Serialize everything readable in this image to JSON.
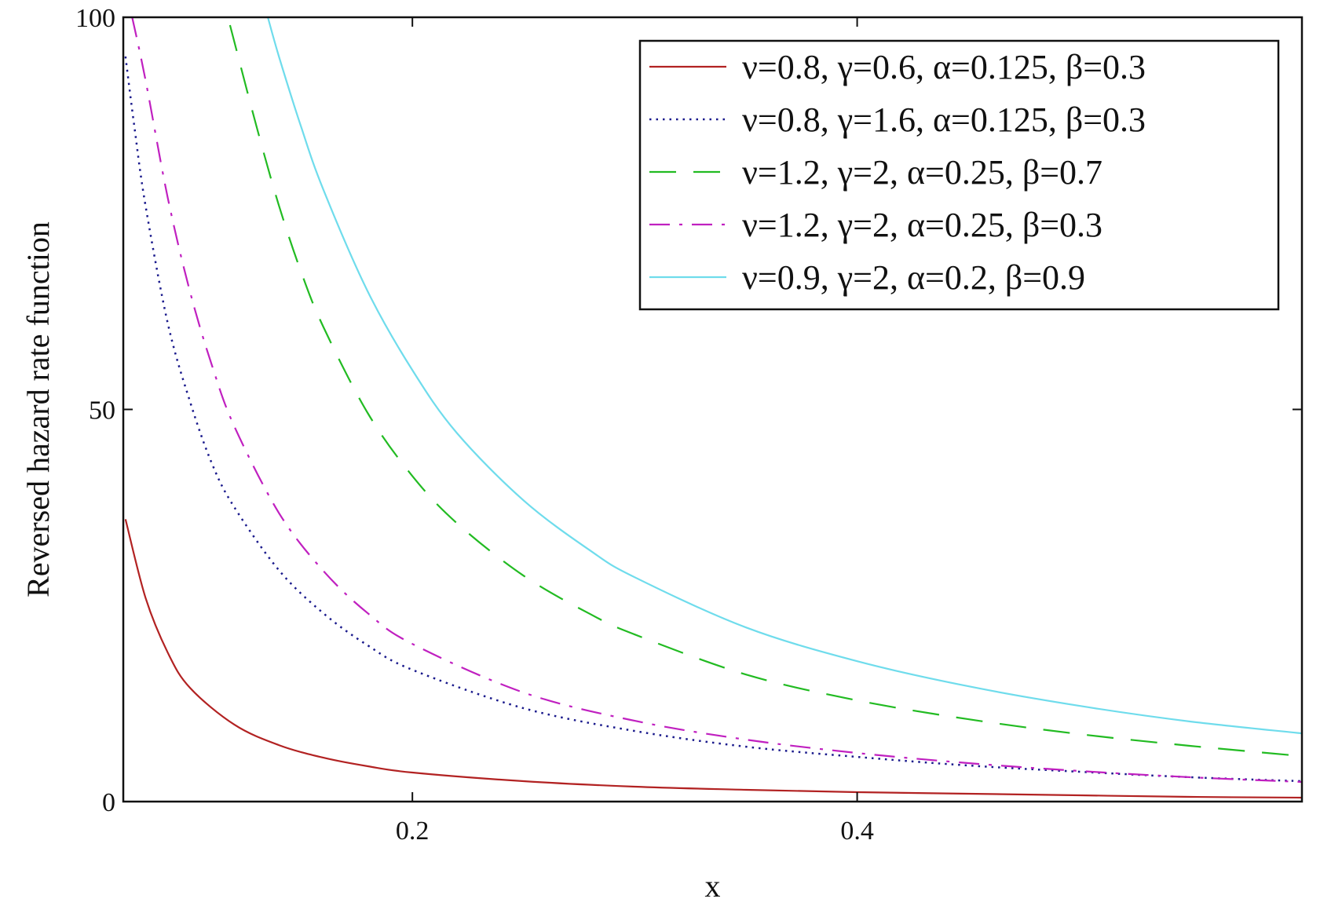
{
  "chart_data": {
    "type": "line",
    "title": "",
    "xlabel": "x",
    "ylabel": "Reversed hazard rate function",
    "xlim": [
      0.07,
      0.6
    ],
    "ylim": [
      0,
      100
    ],
    "x_ticks": [
      0.2,
      0.4
    ],
    "x_tick_labels": [
      "0.2",
      "0.4"
    ],
    "y_ticks": [
      0,
      50,
      100
    ],
    "y_tick_labels": [
      "0",
      "50",
      "100"
    ],
    "grid": false,
    "legend_position": "top-right",
    "series": [
      {
        "name": "ν=0.8, γ=0.6, α=0.125, β=0.3",
        "color": "#b22222",
        "dash": "solid",
        "x": [
          0.071,
          0.08,
          0.09,
          0.1,
          0.12,
          0.14,
          0.16,
          0.18,
          0.2,
          0.25,
          0.3,
          0.35,
          0.4,
          0.45,
          0.5,
          0.55,
          0.6
        ],
        "y": [
          36,
          26,
          19,
          14.5,
          9.8,
          7.2,
          5.6,
          4.5,
          3.7,
          2.6,
          1.9,
          1.5,
          1.2,
          1.0,
          0.8,
          0.6,
          0.5
        ]
      },
      {
        "name": "ν=0.8, γ=1.6, α=0.125, β=0.3",
        "color": "#1a1a8c",
        "dash": "dotted",
        "x": [
          0.071,
          0.075,
          0.08,
          0.09,
          0.1,
          0.11,
          0.12,
          0.14,
          0.16,
          0.18,
          0.2,
          0.25,
          0.3,
          0.35,
          0.4,
          0.45,
          0.5,
          0.55,
          0.6
        ],
        "y": [
          95,
          86,
          76,
          61,
          51,
          43,
          37.5,
          29.5,
          24,
          19.9,
          16.8,
          11.9,
          9.0,
          7.0,
          5.7,
          4.6,
          3.8,
          3.1,
          2.6
        ]
      },
      {
        "name": "ν=1.2, γ=2, α=0.25, β=0.7",
        "color": "#22bb22",
        "dash": "dashed",
        "x": [
          0.118,
          0.13,
          0.14,
          0.15,
          0.16,
          0.18,
          0.2,
          0.22,
          0.25,
          0.28,
          0.3,
          0.35,
          0.4,
          0.45,
          0.5,
          0.55,
          0.6
        ],
        "y": [
          99,
          86,
          76,
          67.5,
          60.5,
          49.5,
          41.5,
          35.5,
          28.8,
          23.9,
          21.3,
          16.2,
          12.9,
          10.5,
          8.6,
          7.1,
          5.8
        ]
      },
      {
        "name": "ν=1.2, γ=2, α=0.25, β=0.3",
        "color": "#c020c0",
        "dash": "dashdot",
        "x": [
          0.074,
          0.08,
          0.09,
          0.1,
          0.11,
          0.12,
          0.14,
          0.16,
          0.18,
          0.2,
          0.25,
          0.3,
          0.35,
          0.4,
          0.45,
          0.5,
          0.55,
          0.6
        ],
        "y": [
          100,
          92,
          77,
          65,
          55.5,
          47.8,
          36.8,
          29.4,
          24.0,
          20.1,
          13.9,
          10.3,
          7.9,
          6.2,
          4.9,
          3.9,
          3.1,
          2.5
        ]
      },
      {
        "name": "ν=0.9, γ=2, α=0.2, β=0.9",
        "color": "#6fdcec",
        "dash": "solid",
        "x": [
          0.135,
          0.14,
          0.15,
          0.16,
          0.18,
          0.2,
          0.22,
          0.25,
          0.28,
          0.3,
          0.35,
          0.4,
          0.45,
          0.5,
          0.55,
          0.6
        ],
        "y": [
          100,
          95,
          86,
          78,
          65,
          55,
          47,
          38.4,
          32.0,
          28.6,
          22.2,
          17.9,
          14.7,
          12.2,
          10.2,
          8.7
        ]
      }
    ]
  }
}
